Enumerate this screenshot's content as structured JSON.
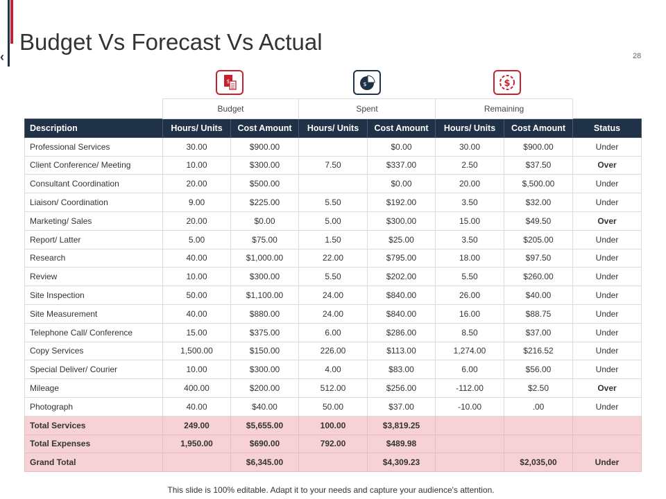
{
  "slide": {
    "title": "Budget Vs Forecast Vs Actual",
    "page_number": "28",
    "nav_prev": "‹",
    "footer": "This slide is 100%  editable.  Adapt it to your needs and capture your audience's attention."
  },
  "icons": [
    {
      "name": "budget-document-icon",
      "color": "#c8202f"
    },
    {
      "name": "pie-chart-dollar-icon",
      "color": "#1f3247"
    },
    {
      "name": "dollar-cycle-icon",
      "color": "#c8202f"
    }
  ],
  "table": {
    "groups": [
      "Budget",
      "Spent",
      "Remaining"
    ],
    "headers": [
      "Description",
      "Hours/ Units",
      "Cost Amount",
      "Hours/ Units",
      "Cost Amount",
      "Hours/ Units",
      "Cost Amount",
      "Status"
    ],
    "rows": [
      [
        "Professional Services",
        "30.00",
        "$900.00",
        "",
        "$0.00",
        "30.00",
        "$900.00",
        "Under"
      ],
      [
        "Client Conference/ Meeting",
        "10.00",
        "$300.00",
        "7.50",
        "$337.00",
        "2.50",
        "$37.50",
        "Over"
      ],
      [
        "Consultant Coordination",
        "20.00",
        "$500.00",
        "",
        "$0.00",
        "20.00",
        "$,500.00",
        "Under"
      ],
      [
        "Liaison/  Coordination",
        "9.00",
        "$225.00",
        "5.50",
        "$192.00",
        "3.50",
        "$32.00",
        "Under"
      ],
      [
        "Marketing/ Sales",
        "20.00",
        "$0.00",
        "5.00",
        "$300.00",
        "15.00",
        "$49.50",
        "Over"
      ],
      [
        "Report/ Latter",
        "5.00",
        "$75.00",
        "1.50",
        "$25.00",
        "3.50",
        "$205.00",
        "Under"
      ],
      [
        "Research",
        "40.00",
        "$1,000.00",
        "22.00",
        "$795.00",
        "18.00",
        "$97.50",
        "Under"
      ],
      [
        "Review",
        "10.00",
        "$300.00",
        "5.50",
        "$202.00",
        "5.50",
        "$260.00",
        "Under"
      ],
      [
        "Site Inspection",
        "50.00",
        "$1,100.00",
        "24.00",
        "$840.00",
        "26.00",
        "$40.00",
        "Under"
      ],
      [
        "Site Measurement",
        "40.00",
        "$880.00",
        "24.00",
        "$840.00",
        "16.00",
        "$88.75",
        "Under"
      ],
      [
        "Telephone Call/ Conference",
        "15.00",
        "$375.00",
        "6.00",
        "$286.00",
        "8.50",
        "$37.00",
        "Under"
      ],
      [
        "Copy Services",
        "1,500.00",
        "$150.00",
        "226.00",
        "$113.00",
        "1,274.00",
        "$216.52",
        "Under"
      ],
      [
        "Special Deliver/ Courier",
        "10.00",
        "$300.00",
        "4.00",
        "$83.00",
        "6.00",
        "$56.00",
        "Under"
      ],
      [
        "Mileage",
        "400.00",
        "$200.00",
        "512.00",
        "$256.00",
        "-112.00",
        "$2.50",
        "Over"
      ],
      [
        "Photograph",
        "40.00",
        "$40.00",
        "50.00",
        "$37.00",
        "-10.00",
        ".00",
        "Under"
      ]
    ],
    "totals": [
      [
        "Total Services",
        "249.00",
        "$5,655.00",
        "100.00",
        "$3,819.25",
        "",
        "",
        ""
      ],
      [
        "Total Expenses",
        "1,950.00",
        "$690.00",
        "792.00",
        "$489.98",
        "",
        "",
        ""
      ],
      [
        "Grand Total",
        "",
        "$6,345.00",
        "",
        "$4,309.23",
        "",
        "$2,035,00",
        "Under"
      ]
    ]
  }
}
